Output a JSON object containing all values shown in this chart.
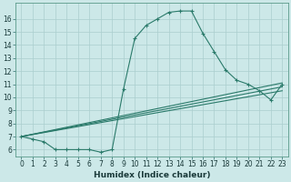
{
  "title": "",
  "xlabel": "Humidex (Indice chaleur)",
  "bg_color": "#cce8e8",
  "line_color": "#2a7a6a",
  "grid_color": "#aacece",
  "xlim": [
    -0.5,
    23.5
  ],
  "ylim": [
    5.5,
    17.2
  ],
  "xticks": [
    0,
    1,
    2,
    3,
    4,
    5,
    6,
    7,
    8,
    9,
    10,
    11,
    12,
    13,
    14,
    15,
    16,
    17,
    18,
    19,
    20,
    21,
    22,
    23
  ],
  "yticks": [
    6,
    7,
    8,
    9,
    10,
    11,
    12,
    13,
    14,
    15,
    16
  ],
  "line1_x": [
    0,
    1,
    2,
    3,
    4,
    5,
    6,
    7,
    8,
    9,
    10,
    11,
    12,
    13,
    14,
    15,
    16,
    17,
    18,
    19,
    20,
    21,
    22,
    23
  ],
  "line1_y": [
    7.0,
    6.8,
    6.6,
    6.0,
    6.0,
    6.0,
    6.0,
    5.8,
    6.0,
    10.6,
    14.5,
    15.5,
    16.0,
    16.5,
    16.6,
    16.6,
    14.9,
    13.5,
    12.1,
    11.3,
    11.0,
    10.5,
    9.8,
    11.0
  ],
  "line2_x": [
    0,
    23
  ],
  "line2_y": [
    7.0,
    11.1
  ],
  "line3_x": [
    0,
    23
  ],
  "line3_y": [
    7.0,
    10.5
  ],
  "line4_x": [
    0,
    23
  ],
  "line4_y": [
    7.0,
    10.8
  ],
  "lw": 0.8,
  "tick_fontsize": 5.5,
  "xlabel_fontsize": 6.5
}
